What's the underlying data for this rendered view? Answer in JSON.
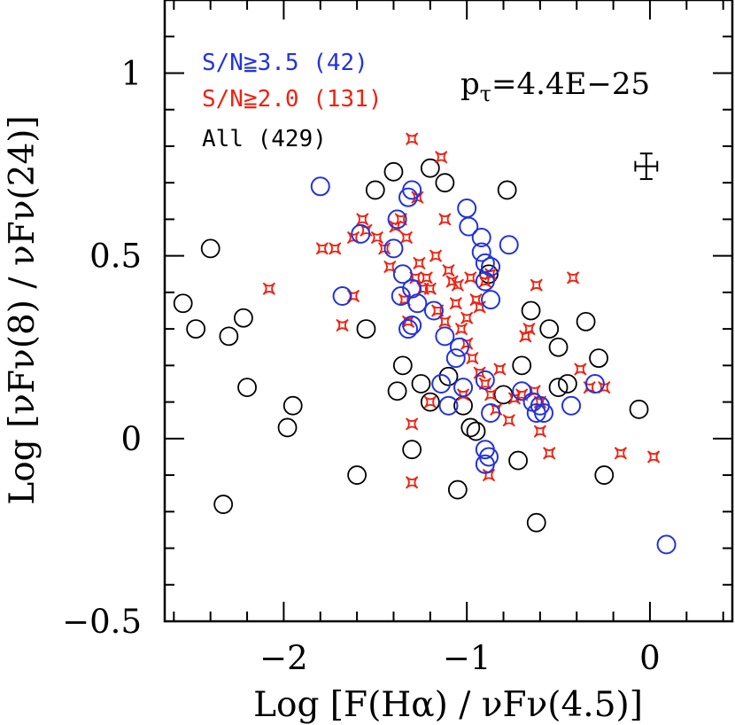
{
  "chart_data": {
    "type": "scatter",
    "title": "",
    "xlabel": "Log [F(Hα) / νFν(4.5)]",
    "ylabel": "Log [νFν(8) / νFν(24)]",
    "xlim": [
      -2.65,
      0.45
    ],
    "ylim": [
      -0.5,
      1.2
    ],
    "xticks": [
      -2,
      -1,
      0
    ],
    "xtick_labels": [
      "−2",
      "−1",
      "0"
    ],
    "yticks": [
      -0.5,
      0,
      0.5,
      1
    ],
    "ytick_labels": [
      "−0.5",
      "0",
      "0.5",
      "1"
    ],
    "grid": false,
    "legend": {
      "position": "top-left",
      "entries": [
        {
          "label": "S/N≧3.5 (42)",
          "color": "#2233dd"
        },
        {
          "label": "S/N≧2.0 (131)",
          "color": "#ee2211"
        },
        {
          "label": "All (429)",
          "color": "#000000"
        }
      ]
    },
    "annotation": {
      "prefix": "p",
      "subscript": "τ",
      "value": "=4.4E−25"
    },
    "errorbar": {
      "x": -0.02,
      "y": 0.745,
      "xerr": 0.06,
      "yerr": 0.035
    },
    "series": [
      {
        "name": "All (429)",
        "color": "#000000",
        "points": [
          [
            -2.55,
            0.37
          ],
          [
            -2.48,
            0.3
          ],
          [
            -2.4,
            0.52
          ],
          [
            -2.33,
            -0.18
          ],
          [
            -2.3,
            0.28
          ],
          [
            -2.22,
            0.33
          ],
          [
            -2.2,
            0.14
          ],
          [
            -1.98,
            0.03
          ],
          [
            -1.95,
            0.09
          ],
          [
            -1.6,
            -0.1
          ],
          [
            -1.55,
            0.3
          ],
          [
            -1.38,
            0.13
          ],
          [
            -1.3,
            -0.03
          ],
          [
            -1.2,
            0.1
          ],
          [
            -1.12,
            0.7
          ],
          [
            -1.05,
            -0.14
          ],
          [
            -0.95,
            0.02
          ],
          [
            -0.78,
            0.68
          ],
          [
            -0.72,
            -0.06
          ],
          [
            -0.62,
            -0.23
          ],
          [
            -0.35,
            0.32
          ],
          [
            -0.28,
            0.22
          ],
          [
            -0.25,
            -0.1
          ],
          [
            -0.06,
            0.08
          ],
          [
            -0.45,
            0.15
          ],
          [
            -0.7,
            0.2
          ],
          [
            -0.8,
            0.12
          ],
          [
            -0.55,
            0.3
          ],
          [
            -0.5,
            0.25
          ],
          [
            -0.65,
            0.35
          ],
          [
            -1.4,
            0.73
          ],
          [
            -1.2,
            0.74
          ],
          [
            -1.5,
            0.68
          ],
          [
            -0.88,
            0.45
          ],
          [
            -0.98,
            0.03
          ],
          [
            -0.5,
            0.14
          ],
          [
            -1.1,
            0.17
          ],
          [
            -1.35,
            0.2
          ],
          [
            -1.25,
            0.15
          ],
          [
            -1.02,
            0.09
          ]
        ]
      },
      {
        "name": "S/N≧2.0 (131)",
        "color": "#ee2211",
        "points": [
          [
            -2.08,
            0.41
          ],
          [
            -1.79,
            0.52
          ],
          [
            -1.72,
            0.52
          ],
          [
            -1.62,
            0.55
          ],
          [
            -1.57,
            0.6
          ],
          [
            -1.55,
            0.57
          ],
          [
            -1.68,
            0.31
          ],
          [
            -1.62,
            0.39
          ],
          [
            -1.49,
            0.55
          ],
          [
            -1.45,
            0.52
          ],
          [
            -1.42,
            0.47
          ],
          [
            -1.39,
            0.58
          ],
          [
            -1.36,
            0.6
          ],
          [
            -1.33,
            0.55
          ],
          [
            -1.3,
            0.82
          ],
          [
            -1.27,
            0.66
          ],
          [
            -1.26,
            0.48
          ],
          [
            -1.22,
            0.44
          ],
          [
            -1.2,
            0.41
          ],
          [
            -1.17,
            0.5
          ],
          [
            -1.14,
            0.77
          ],
          [
            -1.12,
            0.6
          ],
          [
            -1.08,
            0.43
          ],
          [
            -1.06,
            0.37
          ],
          [
            -1.03,
            0.3
          ],
          [
            -1.0,
            0.26
          ],
          [
            -0.97,
            0.22
          ],
          [
            -0.93,
            0.18
          ],
          [
            -0.9,
            0.15
          ],
          [
            -0.87,
            0.12
          ],
          [
            -0.84,
            0.08
          ],
          [
            -0.82,
            0.19
          ],
          [
            -0.77,
            0.05
          ],
          [
            -0.74,
            0.11
          ],
          [
            -0.7,
            0.12
          ],
          [
            -0.68,
            0.28
          ],
          [
            -0.66,
            0.3
          ],
          [
            -0.63,
            0.13
          ],
          [
            -0.6,
            0.02
          ],
          [
            -0.55,
            -0.04
          ],
          [
            -0.42,
            0.44
          ],
          [
            -0.38,
            0.19
          ],
          [
            -0.33,
            0.14
          ],
          [
            -0.25,
            0.14
          ],
          [
            -0.16,
            -0.04
          ],
          [
            0.02,
            -0.05
          ],
          [
            -1.3,
            -0.12
          ],
          [
            -1.3,
            0.04
          ],
          [
            -0.88,
            -0.1
          ],
          [
            -1.2,
            0.1
          ],
          [
            -1.02,
            0.12
          ],
          [
            -0.95,
            0.38
          ],
          [
            -0.9,
            0.43
          ],
          [
            -0.87,
            0.45
          ],
          [
            -1.34,
            0.38
          ],
          [
            -1.32,
            0.32
          ],
          [
            -1.28,
            0.44
          ],
          [
            -1.24,
            0.41
          ],
          [
            -1.16,
            0.35
          ],
          [
            -1.12,
            0.32
          ],
          [
            -1.1,
            0.46
          ],
          [
            -1.05,
            0.42
          ],
          [
            -0.98,
            0.44
          ],
          [
            -0.93,
            0.36
          ],
          [
            -1.0,
            0.33
          ],
          [
            -0.62,
            0.42
          ],
          [
            -0.6,
            0.1
          ]
        ]
      },
      {
        "name": "S/N≧3.5 (42)",
        "color": "#2233dd",
        "points": [
          [
            -1.8,
            0.69
          ],
          [
            -1.32,
            0.66
          ],
          [
            -1.3,
            0.68
          ],
          [
            -1.38,
            0.6
          ],
          [
            -1.4,
            0.52
          ],
          [
            -1.35,
            0.45
          ],
          [
            -1.36,
            0.39
          ],
          [
            -1.3,
            0.41
          ],
          [
            -1.27,
            0.37
          ],
          [
            -1.3,
            0.31
          ],
          [
            -1.32,
            0.3
          ],
          [
            -1.14,
            0.15
          ],
          [
            -1.1,
            0.09
          ],
          [
            -1.06,
            0.22
          ],
          [
            -1.04,
            0.25
          ],
          [
            -1.02,
            0.14
          ],
          [
            -1.0,
            0.63
          ],
          [
            -0.99,
            0.58
          ],
          [
            -0.92,
            0.55
          ],
          [
            -0.92,
            0.51
          ],
          [
            -0.9,
            0.48
          ],
          [
            -0.9,
            0.43
          ],
          [
            -0.87,
            0.47
          ],
          [
            -0.87,
            0.38
          ],
          [
            -0.9,
            0.16
          ],
          [
            -0.87,
            0.07
          ],
          [
            -0.9,
            -0.03
          ],
          [
            -0.88,
            -0.05
          ],
          [
            -0.9,
            -0.07
          ],
          [
            -0.77,
            0.53
          ],
          [
            -0.7,
            0.13
          ],
          [
            -0.64,
            0.1
          ],
          [
            -0.62,
            0.07
          ],
          [
            -0.6,
            0.09
          ],
          [
            -0.58,
            0.07
          ],
          [
            -0.43,
            0.09
          ],
          [
            -0.3,
            0.15
          ],
          [
            0.09,
            -0.29
          ],
          [
            -1.58,
            0.56
          ],
          [
            -1.68,
            0.39
          ],
          [
            -1.12,
            0.28
          ],
          [
            -1.18,
            0.35
          ]
        ]
      }
    ]
  }
}
